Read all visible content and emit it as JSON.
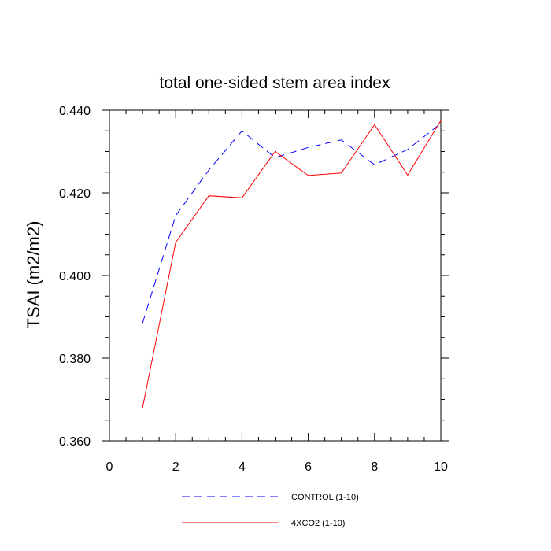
{
  "chart_data": {
    "type": "line",
    "title": "total one-sided stem area index",
    "xlabel": "",
    "ylabel": "TSAI  (m2/m2)",
    "xlim": [
      0,
      10
    ],
    "ylim": [
      0.36,
      0.44
    ],
    "xticks": [
      0,
      2,
      4,
      6,
      8,
      10
    ],
    "xtick_labels": [
      "0",
      "2",
      "4",
      "6",
      "8",
      "10"
    ],
    "yticks": [
      0.36,
      0.38,
      0.4,
      0.42,
      0.44
    ],
    "ytick_labels": [
      "0.360",
      "0.380",
      "0.400",
      "0.420",
      "0.440"
    ],
    "grid": false,
    "legend_position": "bottom",
    "x": [
      1,
      2,
      3,
      4,
      5,
      6,
      7,
      8,
      9,
      10
    ],
    "series": [
      {
        "name": "CONTROL (1-10)",
        "color": "#0000ff",
        "dash": "dashed",
        "values": [
          0.3885,
          0.4145,
          0.4255,
          0.435,
          0.4285,
          0.431,
          0.4328,
          0.4268,
          0.4305,
          0.4368
        ]
      },
      {
        "name": "4XCO2 (1-10)",
        "color": "#ff0000",
        "dash": "solid",
        "values": [
          0.368,
          0.408,
          0.4193,
          0.4188,
          0.43,
          0.4242,
          0.4248,
          0.4365,
          0.4243,
          0.4375
        ]
      }
    ]
  }
}
